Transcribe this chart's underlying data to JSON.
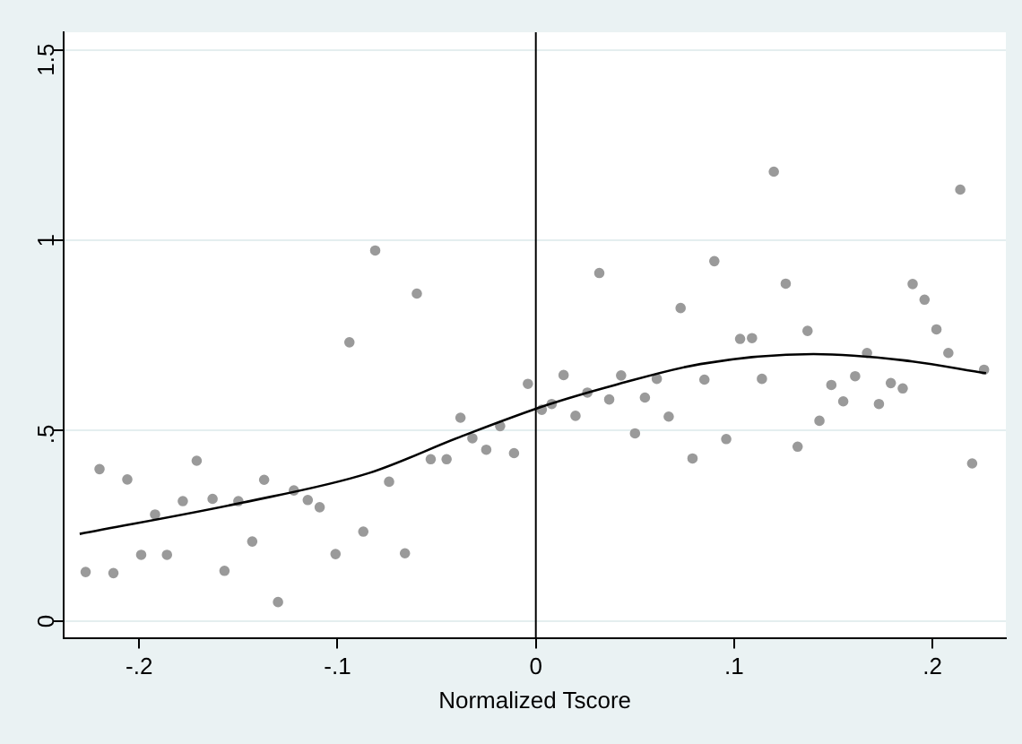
{
  "chart_data": {
    "type": "scatter",
    "xlabel": "Normalized Tscore",
    "xlim": [
      -0.238,
      0.237
    ],
    "ylim": [
      -0.044,
      1.546
    ],
    "xticks": [
      {
        "value": -0.2,
        "label": "-.2"
      },
      {
        "value": -0.1,
        "label": "-.1"
      },
      0,
      {
        "value": 0.1,
        "label": ".1"
      },
      {
        "value": 0.2,
        "label": ".2"
      }
    ],
    "yticks": [
      0,
      {
        "value": 0.5,
        "label": ".5"
      },
      1,
      {
        "value": 1.5,
        "label": "1.5"
      }
    ],
    "grid": "y",
    "legend": false,
    "marker": "circle",
    "ref_lines": [
      {
        "axis": "x",
        "value": 0,
        "color": "#000000"
      }
    ],
    "series": [
      {
        "color": "#9a9a9a",
        "x": [
          -0.227,
          -0.22,
          -0.213,
          -0.206,
          -0.199,
          -0.192,
          -0.186,
          -0.178,
          -0.171,
          -0.163,
          -0.157,
          -0.15,
          -0.143,
          -0.137,
          -0.13,
          -0.122,
          -0.115,
          -0.109,
          -0.101,
          -0.094,
          -0.087,
          -0.081,
          -0.074,
          -0.066,
          -0.06,
          -0.053,
          -0.045,
          -0.038,
          -0.032,
          -0.025,
          -0.018,
          -0.011,
          -0.004,
          0.003,
          0.008,
          0.014,
          0.02,
          0.026,
          0.032,
          0.037,
          0.043,
          0.05,
          0.055,
          0.061,
          0.067,
          0.073,
          0.079,
          0.085,
          0.09,
          0.096,
          0.103,
          0.109,
          0.114,
          0.12,
          0.126,
          0.132,
          0.137,
          0.143,
          0.149,
          0.155,
          0.161,
          0.167,
          0.173,
          0.179,
          0.185,
          0.19,
          0.196,
          0.202,
          0.208,
          0.214,
          0.22,
          0.226
        ],
        "values": [
          0.129,
          0.399,
          0.126,
          0.372,
          0.174,
          0.28,
          0.174,
          0.315,
          0.421,
          0.321,
          0.132,
          0.315,
          0.209,
          0.371,
          0.05,
          0.343,
          0.318,
          0.299,
          0.176,
          0.732,
          0.235,
          0.973,
          0.366,
          0.178,
          0.86,
          0.425,
          0.425,
          0.534,
          0.48,
          0.45,
          0.512,
          0.441,
          0.623,
          0.555,
          0.57,
          0.646,
          0.539,
          0.6,
          0.914,
          0.582,
          0.645,
          0.493,
          0.587,
          0.636,
          0.537,
          0.822,
          0.427,
          0.634,
          0.945,
          0.478,
          0.741,
          0.743,
          0.636,
          1.18,
          0.886,
          0.458,
          0.762,
          0.526,
          0.62,
          0.577,
          0.643,
          0.704,
          0.57,
          0.625,
          0.611,
          0.885,
          0.844,
          0.766,
          0.704,
          1.133,
          0.414,
          0.66
        ]
      },
      {
        "type": "line",
        "color": "#000000",
        "marker": "none",
        "x": [
          -0.23,
          -0.148,
          -0.084,
          -0.039,
          0.006,
          0.04,
          0.083,
          0.14,
          0.185,
          0.227
        ],
        "values": [
          0.229,
          0.311,
          0.389,
          0.482,
          0.568,
          0.62,
          0.675,
          0.701,
          0.685,
          0.651
        ]
      }
    ]
  }
}
